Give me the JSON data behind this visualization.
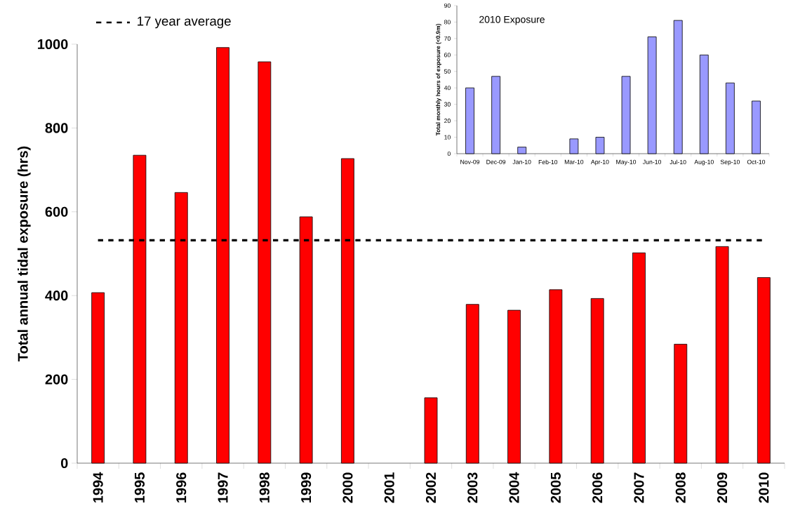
{
  "chart_data": [
    {
      "type": "bar",
      "ylabel": "Total annual tidal exposure (hrs)",
      "categories": [
        "1994",
        "1995",
        "1996",
        "1997",
        "1998",
        "1999",
        "2000",
        "2001",
        "2002",
        "2003",
        "2004",
        "2005",
        "2006",
        "2007",
        "2008",
        "2009",
        "2010"
      ],
      "values": [
        407,
        735,
        646,
        992,
        958,
        588,
        727,
        null,
        156,
        379,
        365,
        414,
        393,
        502,
        284,
        517,
        443
      ],
      "color": "#ff0000",
      "ylim": [
        0,
        1000
      ],
      "yticks": [
        0,
        200,
        400,
        600,
        800,
        1000
      ],
      "ref_lines": [
        {
          "axis": "y",
          "value": 532,
          "label": "17 year average",
          "line_style": "dashed",
          "color": "#000000"
        }
      ]
    },
    {
      "type": "bar",
      "title": "2010 Exposure",
      "ylabel": "Total monthly hours of exposure (<0.9m)",
      "categories": [
        "Nov-09",
        "Dec-09",
        "Jan-10",
        "Feb-10",
        "Mar-10",
        "Apr-10",
        "May-10",
        "Jun-10",
        "Jul-10",
        "Aug-10",
        "Sep-10",
        "Oct-10"
      ],
      "values": [
        40,
        47,
        4,
        null,
        9,
        10,
        47,
        71,
        81,
        60,
        43,
        32
      ],
      "color": "#9999ff",
      "ylim": [
        0,
        90
      ],
      "yticks": [
        0,
        10,
        20,
        30,
        40,
        50,
        60,
        70,
        80,
        90
      ]
    }
  ]
}
